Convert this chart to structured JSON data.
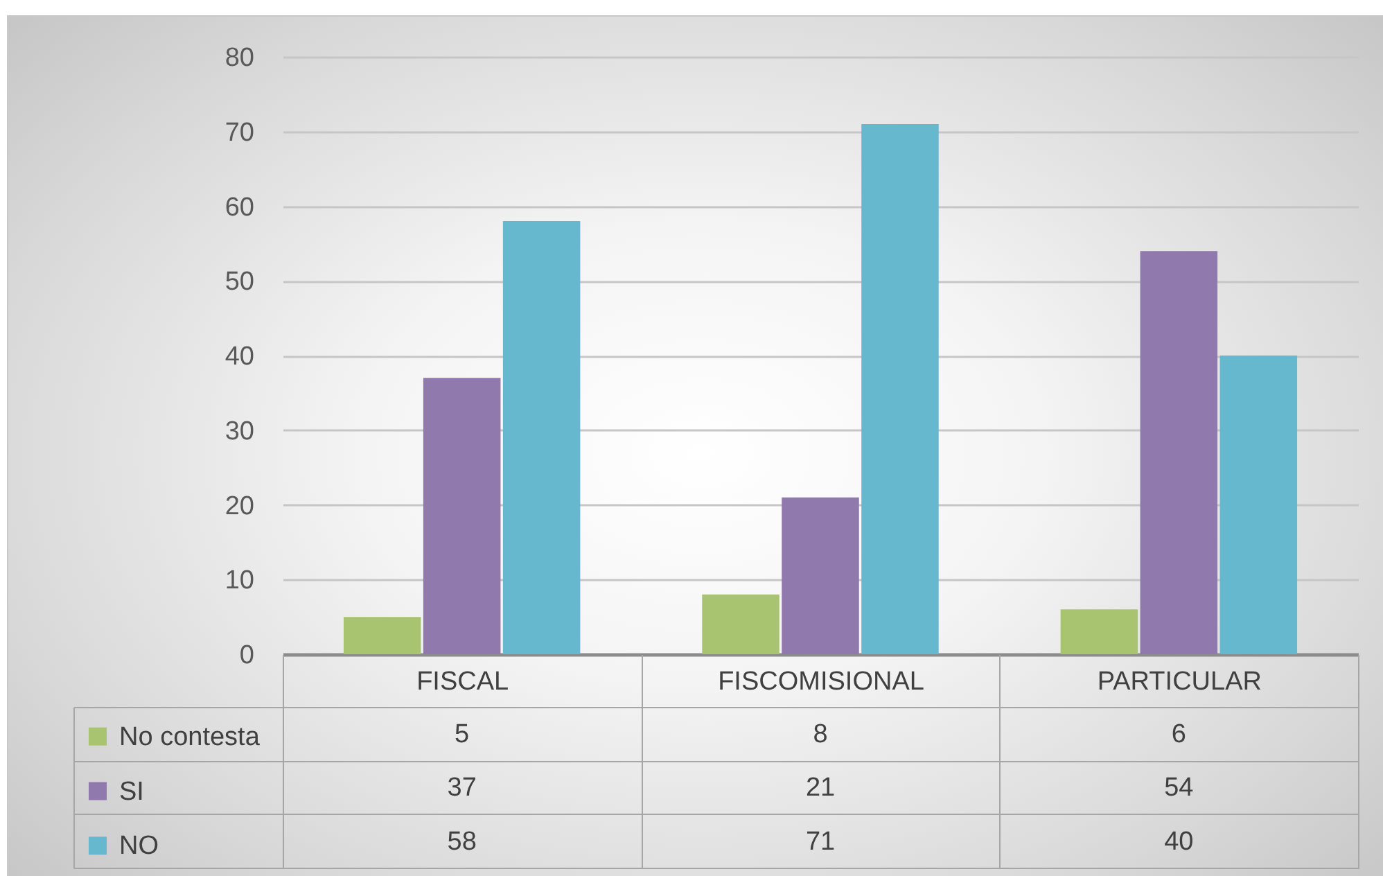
{
  "chart_data": {
    "type": "bar",
    "categories": [
      "FISCAL",
      "FISCOMISIONAL",
      "PARTICULAR"
    ],
    "series": [
      {
        "name": "No contesta",
        "color": "#a8c470",
        "values": [
          5,
          8,
          6
        ]
      },
      {
        "name": "SI",
        "color": "#9079ad",
        "values": [
          37,
          21,
          54
        ]
      },
      {
        "name": "NO",
        "color": "#66b8cf",
        "values": [
          58,
          71,
          40
        ]
      }
    ],
    "ylim": [
      0,
      80
    ],
    "yticks": [
      0,
      10,
      20,
      30,
      40,
      50,
      60,
      70,
      80
    ],
    "grid": "y",
    "legend": "bottom left",
    "data_labels": true
  }
}
